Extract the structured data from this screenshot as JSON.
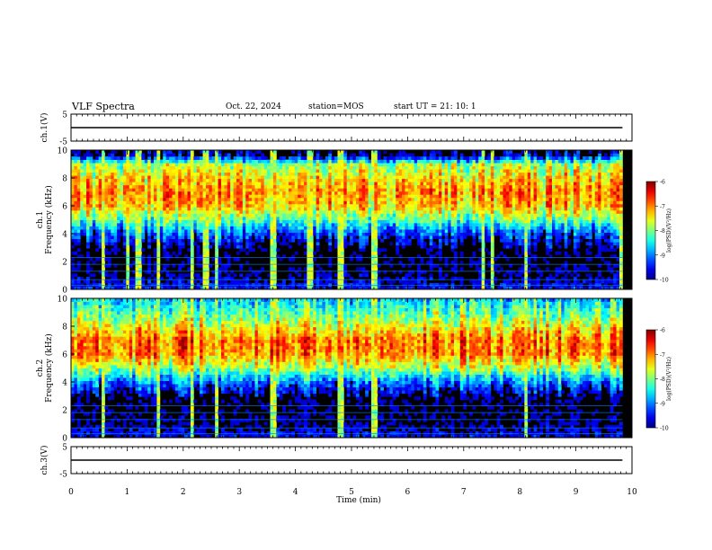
{
  "header": {
    "title": "VLF Spectra",
    "date": "Oct. 22, 2024",
    "station": "station=MOS",
    "start": "start  UT =   21: 10: 1"
  },
  "chart_data": [
    {
      "type": "line",
      "name": "ch1-waveform",
      "ylabel": "ch.1(V)",
      "ylim": [
        -5,
        5
      ],
      "yticks": [
        "5",
        "-5"
      ],
      "xlim": [
        0,
        10
      ],
      "x": [
        0,
        9.83
      ],
      "values": [
        0,
        0
      ]
    },
    {
      "type": "heatmap",
      "name": "ch1-spectrogram",
      "ylabel": "ch.1\nFrequency (kHz)",
      "ylim": [
        0,
        10
      ],
      "yticks": [
        "0",
        "2",
        "4",
        "6",
        "8",
        "10"
      ],
      "xlim": [
        0,
        10
      ],
      "data_end_min": 9.83,
      "colorbar": {
        "label": "log(PSD)(V²/Hz)",
        "ticks": [
          "-6",
          "-7",
          "-8",
          "-9",
          "-10"
        ],
        "range": [
          -10,
          -6
        ]
      },
      "emission_band_khz": [
        4.2,
        9.5
      ],
      "profile_log_psd": [
        {
          "f": 0,
          "v": -9.4
        },
        {
          "f": 1,
          "v": -9.9
        },
        {
          "f": 2,
          "v": -10
        },
        {
          "f": 3,
          "v": -10
        },
        {
          "f": 4,
          "v": -9.3
        },
        {
          "f": 5,
          "v": -8.2
        },
        {
          "f": 6,
          "v": -7.3
        },
        {
          "f": 7,
          "v": -7.1
        },
        {
          "f": 8,
          "v": -7.4
        },
        {
          "f": 9,
          "v": -7.9
        },
        {
          "f": 9.6,
          "v": -9.8
        },
        {
          "f": 10,
          "v": -10
        }
      ],
      "spike_times_min": [
        0.58,
        1.0,
        1.2,
        1.55,
        2.15,
        2.4,
        2.6,
        3.6,
        4.25,
        4.8,
        5.4,
        7.35,
        7.5,
        8.1,
        9.8
      ]
    },
    {
      "type": "heatmap",
      "name": "ch2-spectrogram",
      "ylabel": "ch.2\nFrequency (kHz)",
      "ylim": [
        0,
        10
      ],
      "yticks": [
        "0",
        "2",
        "4",
        "6",
        "8",
        "10"
      ],
      "xlim": [
        0,
        10
      ],
      "data_end_min": 9.83,
      "colorbar": {
        "label": "log(PSD)(V²/Hz)",
        "ticks": [
          "-6",
          "-7",
          "-8",
          "-9",
          "-10"
        ],
        "range": [
          -10,
          -6
        ]
      },
      "emission_band_khz": [
        3.5,
        10
      ],
      "profile_log_psd": [
        {
          "f": 0,
          "v": -9.5
        },
        {
          "f": 1,
          "v": -9.9
        },
        {
          "f": 2,
          "v": -10
        },
        {
          "f": 3,
          "v": -9.9
        },
        {
          "f": 4,
          "v": -9.0
        },
        {
          "f": 5,
          "v": -7.8
        },
        {
          "f": 6,
          "v": -7.0
        },
        {
          "f": 7,
          "v": -6.9
        },
        {
          "f": 8,
          "v": -7.5
        },
        {
          "f": 9,
          "v": -8.1
        },
        {
          "f": 10,
          "v": -8.6
        }
      ],
      "spike_times_min": [
        0.58,
        1.55,
        2.15,
        2.6,
        3.6,
        4.8,
        5.4,
        8.1
      ]
    },
    {
      "type": "line",
      "name": "ch3-waveform",
      "ylabel": "ch.3(V)",
      "ylim": [
        -5,
        5
      ],
      "yticks": [
        "5",
        "-5"
      ],
      "xlim": [
        0,
        10
      ],
      "x": [
        0,
        9.83
      ],
      "values": [
        0,
        0
      ]
    }
  ],
  "xaxis": {
    "label": "Time (min)",
    "ticks": [
      "0",
      "1",
      "2",
      "3",
      "4",
      "5",
      "6",
      "7",
      "8",
      "9",
      "10"
    ]
  }
}
